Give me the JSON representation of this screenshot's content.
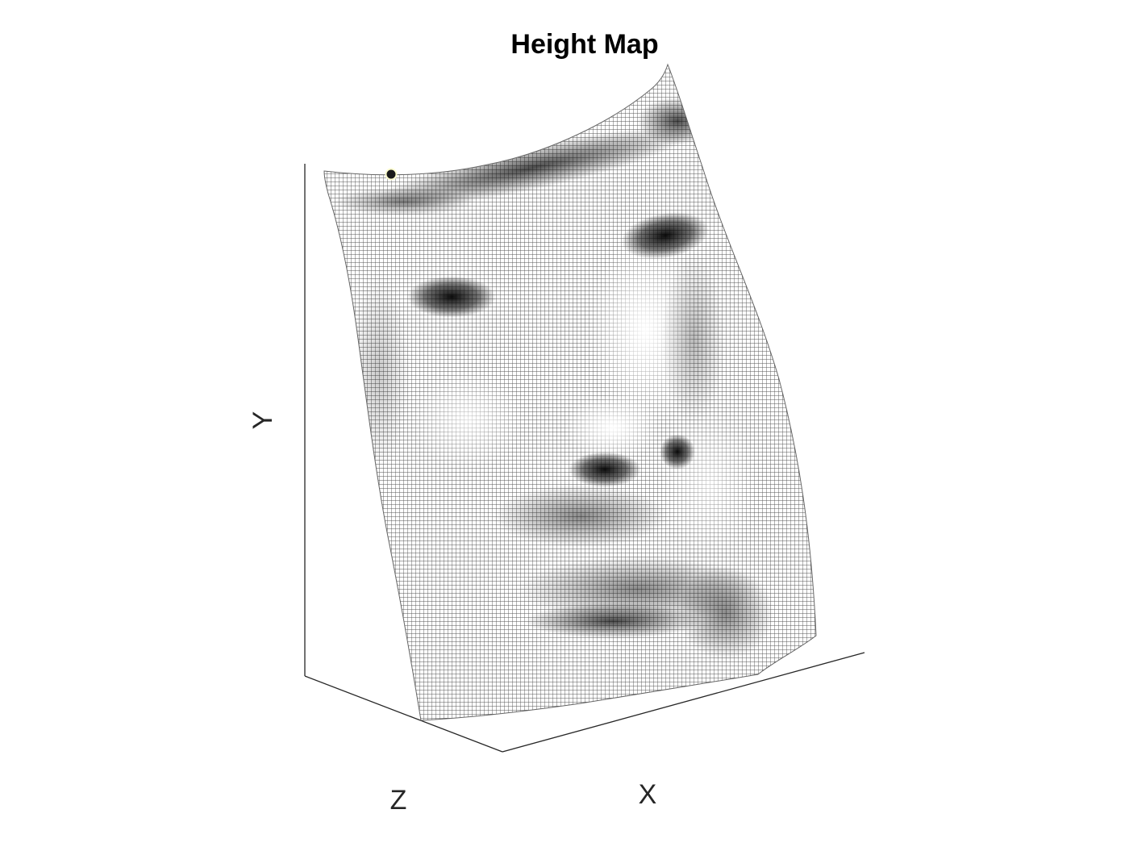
{
  "chart_data": {
    "type": "surface",
    "title": "Height Map",
    "xlabel": "X",
    "ylabel": "Y",
    "zlabel": "Z",
    "grid": false,
    "colormap": "gray",
    "marker": {
      "fill_color": "#1a1a1a",
      "edge_color": "#ffffd0"
    },
    "colors": {
      "axis": "#262626",
      "mesh_light": "#ffffff",
      "mesh_dark": "#000000"
    }
  }
}
